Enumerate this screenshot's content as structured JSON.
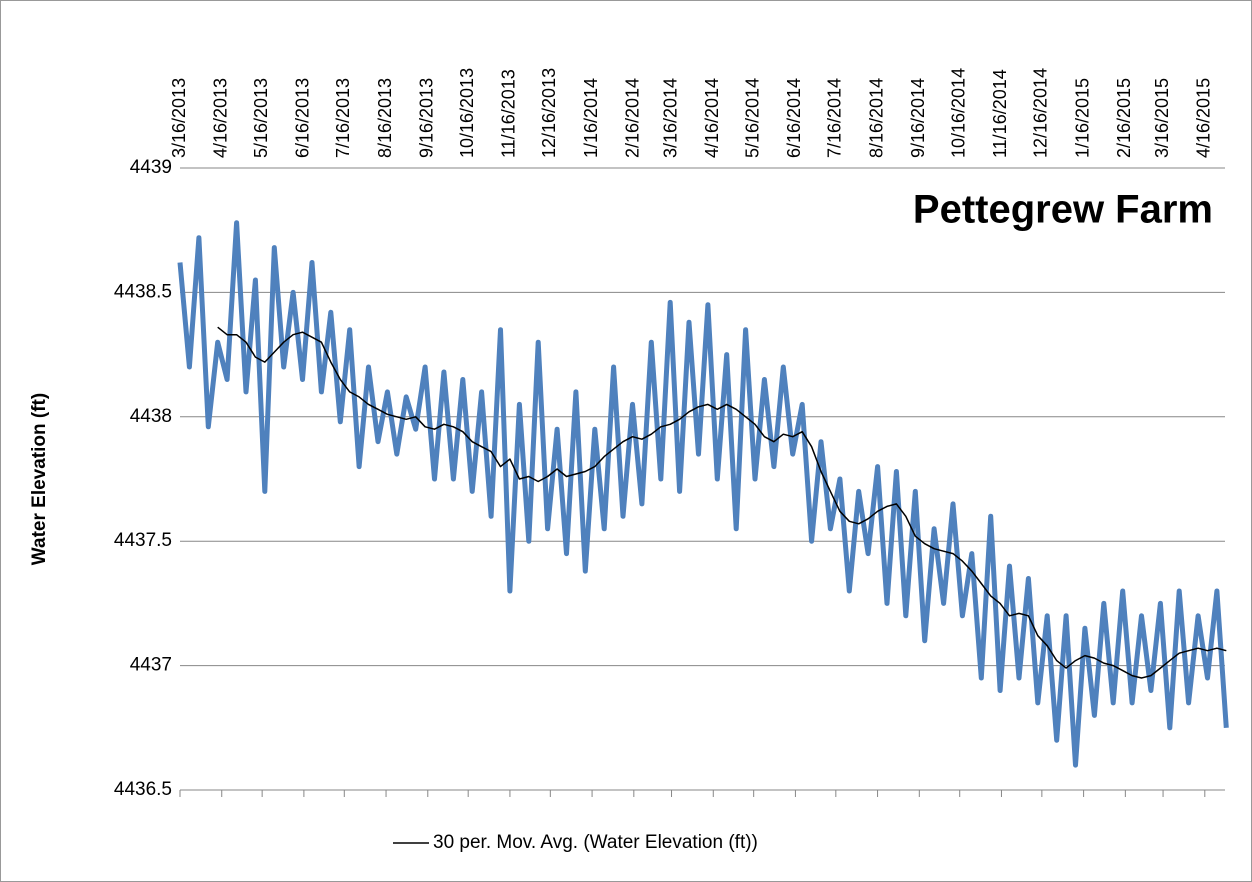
{
  "chart_data": {
    "type": "line",
    "title": "Pettegrew Farm",
    "y_label": "Water Elevation (ft)",
    "x": [
      "3/16/2013",
      "3/23/2013",
      "3/30/2013",
      "4/6/2013",
      "4/13/2013",
      "4/20/2013",
      "4/27/2013",
      "5/4/2013",
      "5/11/2013",
      "5/18/2013",
      "5/25/2013",
      "6/1/2013",
      "6/8/2013",
      "6/15/2013",
      "6/22/2013",
      "6/29/2013",
      "7/6/2013",
      "7/13/2013",
      "7/20/2013",
      "7/27/2013",
      "8/3/2013",
      "8/10/2013",
      "8/17/2013",
      "8/24/2013",
      "8/31/2013",
      "9/7/2013",
      "9/14/2013",
      "9/21/2013",
      "9/28/2013",
      "10/5/2013",
      "10/12/2013",
      "10/19/2013",
      "10/26/2013",
      "11/2/2013",
      "11/9/2013",
      "11/16/2013",
      "11/23/2013",
      "11/30/2013",
      "12/7/2013",
      "12/14/2013",
      "12/21/2013",
      "12/28/2013",
      "1/4/2014",
      "1/11/2014",
      "1/18/2014",
      "1/25/2014",
      "2/1/2014",
      "2/8/2014",
      "2/15/2014",
      "2/22/2014",
      "3/1/2014",
      "3/8/2014",
      "3/15/2014",
      "3/22/2014",
      "3/29/2014",
      "4/5/2014",
      "4/12/2014",
      "4/19/2014",
      "4/26/2014",
      "5/3/2014",
      "5/10/2014",
      "5/17/2014",
      "5/24/2014",
      "5/31/2014",
      "6/7/2014",
      "6/14/2014",
      "6/21/2014",
      "6/28/2014",
      "7/5/2014",
      "7/12/2014",
      "7/19/2014",
      "7/26/2014",
      "8/2/2014",
      "8/9/2014",
      "8/16/2014",
      "8/23/2014",
      "8/30/2014",
      "9/6/2014",
      "9/13/2014",
      "9/20/2014",
      "9/27/2014",
      "10/4/2014",
      "10/11/2014",
      "10/18/2014",
      "10/25/2014",
      "11/1/2014",
      "11/8/2014",
      "11/15/2014",
      "11/22/2014",
      "11/29/2014",
      "12/6/2014",
      "12/13/2014",
      "12/20/2014",
      "12/27/2014",
      "1/3/2015",
      "1/10/2015",
      "1/17/2015",
      "1/24/2015",
      "1/31/2015",
      "2/7/2015",
      "2/14/2015",
      "2/21/2015",
      "2/28/2015",
      "3/7/2015",
      "3/14/2015",
      "3/21/2015",
      "3/28/2015",
      "4/4/2015",
      "4/11/2015",
      "4/18/2015",
      "4/25/2015",
      "5/2/2015"
    ],
    "series": [
      {
        "color": "#4f81bd",
        "width": 5,
        "values": [
          4438.62,
          4438.2,
          4438.72,
          4437.96,
          4438.3,
          4438.15,
          4438.78,
          4438.1,
          4438.55,
          4437.7,
          4438.68,
          4438.2,
          4438.5,
          4438.15,
          4438.62,
          4438.1,
          4438.42,
          4437.98,
          4438.35,
          4437.8,
          4438.2,
          4437.9,
          4438.1,
          4437.85,
          4438.08,
          4437.95,
          4438.2,
          4437.75,
          4438.18,
          4437.75,
          4438.15,
          4437.7,
          4438.1,
          4437.6,
          4438.35,
          4437.3,
          4438.05,
          4437.5,
          4438.3,
          4437.55,
          4437.95,
          4437.45,
          4438.1,
          4437.38,
          4437.95,
          4437.55,
          4438.2,
          4437.6,
          4438.05,
          4437.65,
          4438.3,
          4437.75,
          4438.46,
          4437.7,
          4438.38,
          4437.85,
          4438.45,
          4437.75,
          4438.25,
          4437.55,
          4438.35,
          4437.75,
          4438.15,
          4437.8,
          4438.2,
          4437.85,
          4438.05,
          4437.5,
          4437.9,
          4437.55,
          4437.75,
          4437.3,
          4437.7,
          4437.45,
          4437.8,
          4437.25,
          4437.78,
          4437.2,
          4437.7,
          4437.1,
          4437.55,
          4437.25,
          4437.65,
          4437.2,
          4437.45,
          4436.95,
          4437.6,
          4436.9,
          4437.4,
          4436.95,
          4437.35,
          4436.85,
          4437.2,
          4436.7,
          4437.2,
          4436.6,
          4437.15,
          4436.8,
          4437.25,
          4436.85,
          4437.3,
          4436.85,
          4437.2,
          4436.9,
          4437.25,
          4436.75,
          4437.3,
          4436.85,
          4437.2,
          4436.95,
          4437.3,
          4436.75
        ]
      },
      {
        "name": "30 per. Mov. Avg. (Water Elevation (ft))",
        "color": "#000000",
        "width": 1.5,
        "values": [
          null,
          null,
          null,
          null,
          4438.36,
          4438.33,
          4438.33,
          4438.3,
          4438.24,
          4438.22,
          4438.26,
          4438.3,
          4438.33,
          4438.34,
          4438.32,
          4438.3,
          4438.22,
          4438.15,
          4438.1,
          4438.08,
          4438.05,
          4438.03,
          4438.01,
          4438.0,
          4437.99,
          4438.0,
          4437.96,
          4437.95,
          4437.97,
          4437.96,
          4437.94,
          4437.9,
          4437.88,
          4437.86,
          4437.8,
          4437.83,
          4437.75,
          4437.76,
          4437.74,
          4437.76,
          4437.79,
          4437.76,
          4437.77,
          4437.78,
          4437.8,
          4437.84,
          4437.87,
          4437.9,
          4437.92,
          4437.91,
          4437.93,
          4437.96,
          4437.97,
          4437.99,
          4438.02,
          4438.04,
          4438.05,
          4438.03,
          4438.05,
          4438.03,
          4438.0,
          4437.97,
          4437.92,
          4437.9,
          4437.93,
          4437.92,
          4437.94,
          4437.88,
          4437.78,
          4437.7,
          4437.62,
          4437.58,
          4437.57,
          4437.59,
          4437.62,
          4437.64,
          4437.65,
          4437.6,
          4437.52,
          4437.49,
          4437.47,
          4437.46,
          4437.45,
          4437.42,
          4437.38,
          4437.33,
          4437.28,
          4437.25,
          4437.2,
          4437.21,
          4437.2,
          4437.12,
          4437.08,
          4437.02,
          4436.99,
          4437.02,
          4437.04,
          4437.03,
          4437.01,
          4437.0,
          4436.98,
          4436.96,
          4436.95,
          4436.96,
          4436.99,
          4437.02,
          4437.05,
          4437.06,
          4437.07,
          4437.06,
          4437.07,
          4437.06
        ]
      }
    ],
    "xlim": [
      "3/16/2013",
      "5/1/2015"
    ],
    "xticks": [
      "3/16/2013",
      "4/16/2013",
      "5/16/2013",
      "6/16/2013",
      "7/16/2013",
      "8/16/2013",
      "9/16/2013",
      "10/16/2013",
      "11/16/2013",
      "12/16/2013",
      "1/16/2014",
      "2/16/2014",
      "3/16/2014",
      "4/16/2014",
      "5/16/2014",
      "6/16/2014",
      "7/16/2014",
      "8/16/2014",
      "9/16/2014",
      "10/16/2014",
      "11/16/2014",
      "12/16/2014",
      "1/16/2015",
      "2/16/2015",
      "3/16/2015",
      "4/16/2015"
    ],
    "ylim": [
      4436.5,
      4439
    ],
    "yticks": [
      4436.5,
      4437,
      4437.5,
      4438,
      4438.5,
      4439
    ],
    "grid": true,
    "legend": "bottom"
  }
}
